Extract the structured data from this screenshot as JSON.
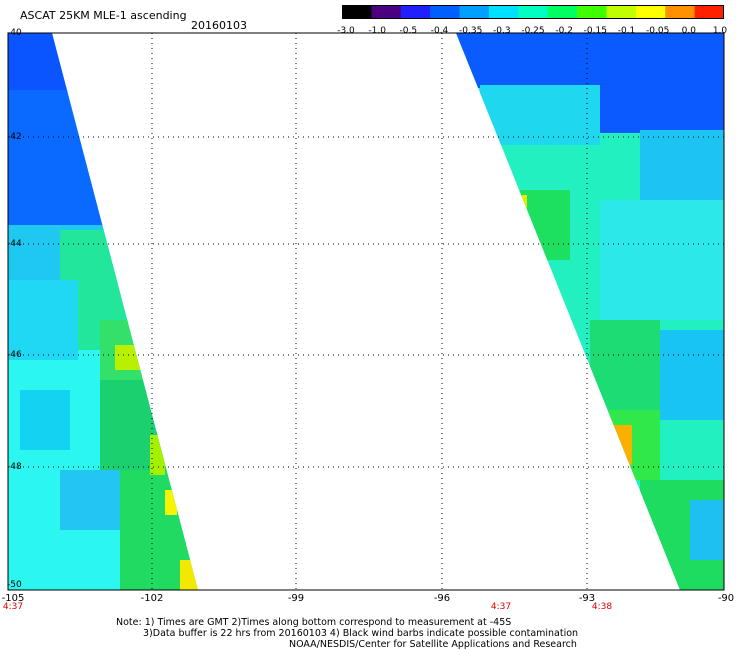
{
  "header": {
    "title": "ASCAT 25KM MLE-1 ascending",
    "date": "20160103"
  },
  "colorbar": {
    "labels": [
      "-3.0",
      "-1.0",
      "-0.5",
      "-0.4",
      "-0.35",
      "-0.3",
      "-0.25",
      "-0.2",
      "-0.15",
      "-0.1",
      "-0.05",
      "0.0",
      "1.0"
    ],
    "colors": [
      "#000000",
      "#4b0082",
      "#2020ff",
      "#0060ff",
      "#00a0ff",
      "#00e0ff",
      "#00ffc0",
      "#00ff60",
      "#40ff00",
      "#c0ff00",
      "#ffff00",
      "#ff9000",
      "#ff2000"
    ]
  },
  "axes": {
    "y_ticks": [
      "-40",
      "-42",
      "-44",
      "-46",
      "-48",
      "-50"
    ],
    "x_ticks": [
      "-105",
      "-102",
      "-99",
      "-96",
      "-93",
      "-90"
    ]
  },
  "times": [
    "4:37",
    "4:37",
    "4:38"
  ],
  "notes": {
    "line1": "Note: 1) Times are GMT 2)Times along bottom correspond to measurement at -45S",
    "line2": "3)Data buffer is 22 hrs from 20160103 4) Black wind barbs indicate possible contamination",
    "line3": "NOAA/NESDIS/Center for Satellite Applications and Research"
  }
}
